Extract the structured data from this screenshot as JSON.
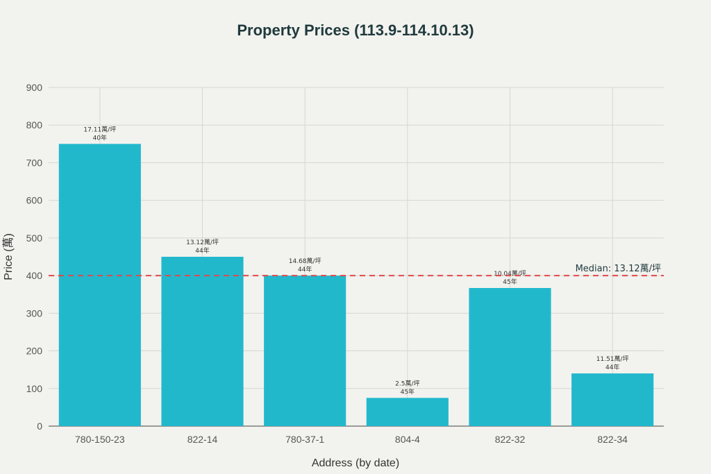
{
  "chart_data": {
    "type": "bar",
    "title": "Property Prices (113.9-114.10.13)",
    "xlabel": "Address (by date)",
    "ylabel": "Price (萬)",
    "ylim": [
      0,
      900
    ],
    "yticks": [
      0,
      100,
      200,
      300,
      400,
      500,
      600,
      700,
      800,
      900
    ],
    "grid": true,
    "bar_color": "#22b8cc",
    "categories": [
      "780-150-23",
      "822-14",
      "780-37-1",
      "804-4",
      "822-32",
      "822-34"
    ],
    "values": [
      750,
      450,
      400,
      75,
      367,
      140
    ],
    "unit_prices": [
      "17.11萬/坪",
      "13.12萬/坪",
      "14.68萬/坪",
      "2.5萬/坪",
      "10.04萬/坪",
      "11.51萬/坪"
    ],
    "ages": [
      "40年",
      "44年",
      "44年",
      "45年",
      "45年",
      "44年"
    ],
    "median": {
      "value": 400,
      "label": "Median: 13.12萬/坪",
      "color": "#e0494a"
    }
  }
}
